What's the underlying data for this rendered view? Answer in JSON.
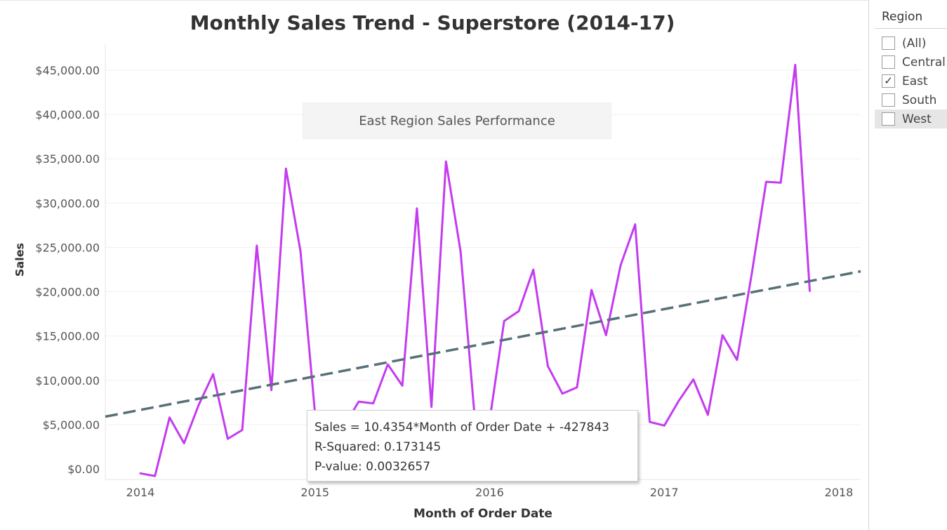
{
  "title": "Monthly Sales Trend - Superstore (2014-17)",
  "annotation": "East Region Sales Performance",
  "tooltip": {
    "line1": "Sales = 10.4354*Month of Order Date + -427843",
    "line2": "R-Squared: 0.173145",
    "line3": "P-value: 0.0032657"
  },
  "filter": {
    "title": "Region",
    "items": [
      {
        "label": "(All)",
        "checked": false
      },
      {
        "label": "Central",
        "checked": false
      },
      {
        "label": "East",
        "checked": true
      },
      {
        "label": "South",
        "checked": false
      },
      {
        "label": "West",
        "checked": false
      }
    ]
  },
  "chart_data": {
    "type": "line",
    "xlabel": "Month of Order Date",
    "ylabel": "Sales",
    "ylim": [
      0,
      45000
    ],
    "yticks": [
      0,
      5000,
      10000,
      15000,
      20000,
      25000,
      30000,
      35000,
      40000,
      45000
    ],
    "ytick_labels": [
      "$0.00",
      "$5,000.00",
      "$10,000.00",
      "$15,000.00",
      "$20,000.00",
      "$25,000.00",
      "$30,000.00",
      "$35,000.00",
      "$40,000.00",
      "$45,000.00"
    ],
    "xticks": [
      "2014-01",
      "2015-01",
      "2016-01",
      "2017-01",
      "2018-01"
    ],
    "xtick_labels": [
      "2014",
      "2015",
      "2016",
      "2017",
      "2018"
    ],
    "grid": true,
    "line_color": "#c43bf0",
    "trend_color": "#577078",
    "series": [
      {
        "x": [
          "2014-01",
          "2014-02",
          "2014-03",
          "2014-04",
          "2014-05",
          "2014-06",
          "2014-07",
          "2014-08",
          "2014-09",
          "2014-10",
          "2014-11",
          "2014-12",
          "2015-01",
          "2015-02",
          "2015-03",
          "2015-04",
          "2015-05",
          "2015-06",
          "2015-07",
          "2015-08",
          "2015-09",
          "2015-10",
          "2015-11",
          "2015-12",
          "2016-01",
          "2016-02",
          "2016-03",
          "2016-04",
          "2016-05",
          "2016-06",
          "2016-07",
          "2016-08",
          "2016-09",
          "2016-10",
          "2016-11",
          "2016-12",
          "2017-01",
          "2017-02",
          "2017-03",
          "2017-04",
          "2017-05",
          "2017-06",
          "2017-07",
          "2017-08",
          "2017-09",
          "2017-10",
          "2017-11",
          "2017-12"
        ],
        "values": [
          -500,
          -800,
          5800,
          2900,
          7200,
          10700,
          3400,
          4400,
          25200,
          8900,
          33900,
          24600,
          6200,
          3000,
          4800,
          7600,
          7400,
          11800,
          9400,
          29400,
          7000,
          34700,
          24600,
          5300,
          5500,
          16700,
          17800,
          22500,
          11600,
          8500,
          9200,
          20200,
          15100,
          23000,
          27600,
          5300,
          4900,
          7700,
          10100,
          6100,
          15100,
          12300,
          21900,
          32400,
          32300,
          45600,
          20100,
          null
        ]
      }
    ],
    "trend_line": {
      "slope": 10.4354,
      "intercept": -427843
    }
  }
}
